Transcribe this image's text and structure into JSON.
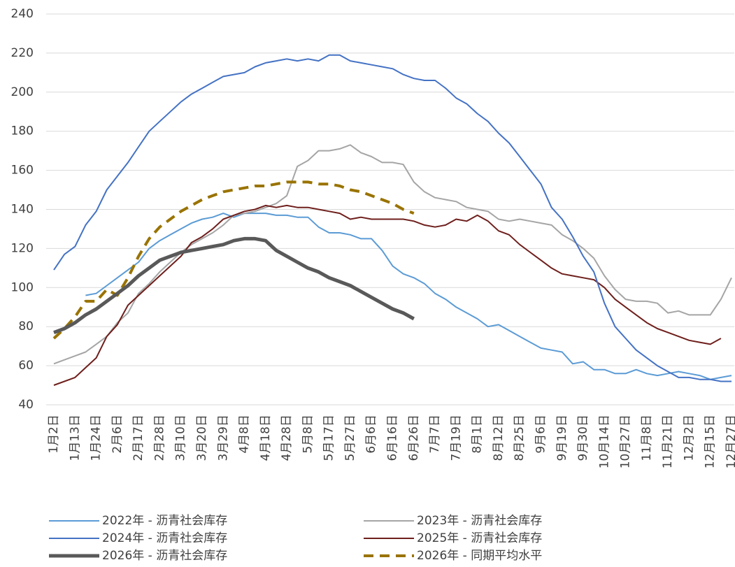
{
  "chart_data": {
    "type": "line",
    "categories": [
      "1月2日",
      null,
      "1月13日",
      null,
      "1月24日",
      null,
      "2月6日",
      null,
      "2月17日",
      null,
      "2月28日",
      null,
      "3月10日",
      null,
      "3月20日",
      null,
      "3月29日",
      null,
      "4月8日",
      null,
      "4月18日",
      null,
      "4月28日",
      null,
      "5月8日",
      null,
      "5月17日",
      null,
      "5月27日",
      null,
      "6月6日",
      null,
      "6月16日",
      null,
      "6月26日",
      null,
      "7月7日",
      null,
      "7月19日",
      null,
      "8月1日",
      null,
      "8月12日",
      null,
      "8月25日",
      null,
      "9月6日",
      null,
      "9月19日",
      null,
      "9月30日",
      null,
      "10月14日",
      null,
      "10月27日",
      null,
      "11月8日",
      null,
      "11月21日",
      null,
      "12月2日",
      null,
      "12月15日",
      null,
      "12月27日"
    ],
    "ylim": [
      40,
      240
    ],
    "yticks": [
      40,
      60,
      80,
      100,
      120,
      140,
      160,
      180,
      200,
      220,
      240
    ],
    "grid": true,
    "series": [
      {
        "name": "2022年 - 沥青社会库存",
        "color": "#5b9bd5",
        "width": 2,
        "dash": false,
        "values": [
          null,
          null,
          null,
          96,
          97,
          101,
          105,
          109,
          113,
          120,
          124,
          127,
          130,
          133,
          135,
          136,
          138,
          136,
          138,
          138,
          138,
          137,
          137,
          136,
          136,
          131,
          128,
          128,
          127,
          125,
          125,
          119,
          111,
          107,
          105,
          102,
          97,
          94,
          90,
          87,
          84,
          80,
          81,
          78,
          75,
          72,
          69,
          68,
          67,
          61,
          62,
          58,
          58,
          56,
          56,
          58,
          56,
          55,
          56,
          57,
          56,
          55,
          53,
          54,
          55
        ]
      },
      {
        "name": "2023年 - 沥青社会库存",
        "color": "#a5a5a5",
        "width": 2,
        "dash": false,
        "values": [
          61,
          63,
          65,
          67,
          71,
          75,
          82,
          87,
          97,
          102,
          108,
          113,
          118,
          122,
          125,
          128,
          132,
          137,
          138,
          139,
          141,
          143,
          147,
          162,
          165,
          170,
          170,
          171,
          173,
          169,
          167,
          164,
          164,
          163,
          154,
          149,
          146,
          145,
          144,
          141,
          140,
          139,
          135,
          134,
          135,
          134,
          133,
          132,
          127,
          124,
          120,
          115,
          106,
          99,
          94,
          93,
          93,
          92,
          87,
          88,
          86,
          86,
          86,
          94,
          105
        ]
      },
      {
        "name": "2024年 - 沥青社会库存",
        "color": "#4472c4",
        "width": 2,
        "dash": false,
        "values": [
          109,
          117,
          121,
          132,
          139,
          150,
          157,
          164,
          172,
          180,
          185,
          190,
          195,
          199,
          202,
          205,
          208,
          209,
          210,
          213,
          215,
          216,
          217,
          216,
          217,
          216,
          219,
          219,
          216,
          215,
          214,
          213,
          212,
          209,
          207,
          206,
          206,
          202,
          197,
          194,
          189,
          185,
          179,
          174,
          167,
          160,
          153,
          141,
          135,
          126,
          116,
          108,
          92,
          80,
          74,
          68,
          64,
          60,
          57,
          54,
          54,
          53,
          53,
          52,
          52
        ]
      },
      {
        "name": "2025年 - 沥青社会库存",
        "color": "#6e1f1c",
        "width": 2,
        "dash": false,
        "values": [
          50,
          52,
          54,
          59,
          64,
          75,
          81,
          91,
          96,
          101,
          106,
          111,
          116,
          123,
          126,
          130,
          135,
          137,
          139,
          140,
          142,
          141,
          142,
          141,
          141,
          140,
          139,
          138,
          135,
          136,
          135,
          135,
          135,
          135,
          134,
          132,
          131,
          132,
          135,
          134,
          137,
          134,
          129,
          127,
          122,
          118,
          114,
          110,
          107,
          106,
          105,
          104,
          100,
          94,
          90,
          86,
          82,
          79,
          77,
          75,
          73,
          72,
          71,
          74,
          null
        ]
      },
      {
        "name": "2026年 - 沥青社会库存",
        "color": "#595959",
        "width": 5,
        "dash": false,
        "values": [
          77,
          79,
          82,
          86,
          89,
          93,
          97,
          101,
          106,
          110,
          114,
          116,
          118,
          119,
          120,
          121,
          122,
          124,
          125,
          125,
          124,
          119,
          116,
          113,
          110,
          108,
          105,
          103,
          101,
          98,
          95,
          92,
          89,
          87,
          84,
          null,
          null,
          null,
          null,
          null,
          null,
          null,
          null,
          null,
          null,
          null,
          null,
          null,
          null,
          null,
          null,
          null,
          null,
          null,
          null,
          null,
          null,
          null,
          null,
          null,
          null,
          null,
          null,
          null,
          null
        ]
      },
      {
        "name": "2026年 - 同期平均水平",
        "color": "#997300",
        "width": 4,
        "dash": true,
        "values": [
          74,
          79,
          85,
          93,
          93,
          99,
          96,
          105,
          116,
          125,
          131,
          135,
          139,
          142,
          145,
          147,
          149,
          150,
          151,
          152,
          152,
          153,
          154,
          154,
          154,
          153,
          153,
          152,
          150,
          149,
          147,
          145,
          143,
          140,
          138,
          null,
          null,
          null,
          null,
          null,
          null,
          null,
          null,
          null,
          null,
          null,
          null,
          null,
          null,
          null,
          null,
          null,
          null,
          null,
          null,
          null,
          null,
          null,
          null,
          null,
          null,
          null,
          null,
          null,
          null
        ]
      }
    ]
  }
}
